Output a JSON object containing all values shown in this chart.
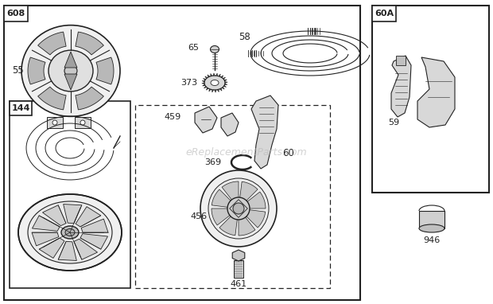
{
  "bg_color": "#ffffff",
  "line_color": "#222222",
  "watermark": "eReplacementParts.com",
  "fig_w": 6.2,
  "fig_h": 3.82,
  "dpi": 100
}
